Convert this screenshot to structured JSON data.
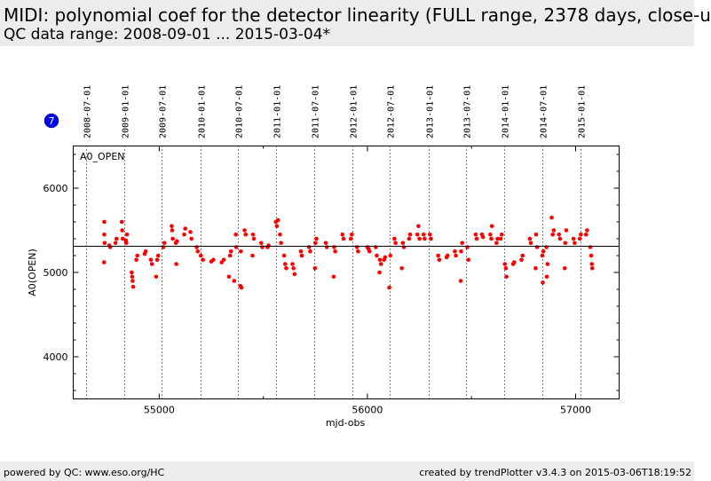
{
  "header": {
    "title": "MIDI: polynomial coef for the detector linearity (FULL range, 2378 days, close-u",
    "subtitle": "QC data range: 2008-09-01 ... 2015-03-04*"
  },
  "badge": {
    "label": "7",
    "color": "#0000ff"
  },
  "footer": {
    "left": "powered by QC: www.eso.org/HC",
    "right": "created by trendPlotter v3.4.3 on 2015-03-06T18:19:52"
  },
  "chart_data": {
    "type": "scatter",
    "panel_label": "A0_OPEN",
    "xlabel": "mjd-obs",
    "ylabel": "A0(OPEN)",
    "xlim": [
      54587,
      57209
    ],
    "ylim": [
      3500,
      6500
    ],
    "xticks": [
      55000,
      56000,
      57000
    ],
    "yticks": [
      4000,
      5000,
      6000
    ],
    "xtick_labels": [
      "55000",
      "56000",
      "57000"
    ],
    "ytick_labels": [
      "4000",
      "5000",
      "6000"
    ],
    "mean_line": 5316,
    "point_color": "#ff0000",
    "date_lines": [
      {
        "label": "2008-07-01",
        "x": 54648
      },
      {
        "label": "2009-01-01",
        "x": 54832
      },
      {
        "label": "2009-07-01",
        "x": 55013
      },
      {
        "label": "2010-01-01",
        "x": 55197
      },
      {
        "label": "2010-07-01",
        "x": 55378
      },
      {
        "label": "2011-01-01",
        "x": 55562
      },
      {
        "label": "2011-07-01",
        "x": 55743
      },
      {
        "label": "2012-01-01",
        "x": 55927
      },
      {
        "label": "2012-07-01",
        "x": 56109
      },
      {
        "label": "2013-01-01",
        "x": 56293
      },
      {
        "label": "2013-07-01",
        "x": 56474
      },
      {
        "label": "2014-01-01",
        "x": 56658
      },
      {
        "label": "2014-07-01",
        "x": 56839
      },
      {
        "label": "2015-01-01",
        "x": 57023
      }
    ],
    "points": [
      [
        54736,
        5600
      ],
      [
        54736,
        5450
      ],
      [
        54738,
        5350
      ],
      [
        54735,
        5120
      ],
      [
        54760,
        5320
      ],
      [
        54765,
        5300
      ],
      [
        54790,
        5350
      ],
      [
        54795,
        5400
      ],
      [
        54820,
        5600
      ],
      [
        54822,
        5500
      ],
      [
        54825,
        5400
      ],
      [
        54840,
        5380
      ],
      [
        54842,
        5350
      ],
      [
        54845,
        5450
      ],
      [
        54870,
        4950
      ],
      [
        54872,
        4900
      ],
      [
        54875,
        4830
      ],
      [
        54868,
        5000
      ],
      [
        54890,
        5150
      ],
      [
        54895,
        5200
      ],
      [
        54930,
        5220
      ],
      [
        54935,
        5250
      ],
      [
        54960,
        5150
      ],
      [
        54965,
        5100
      ],
      [
        54990,
        5150
      ],
      [
        54995,
        5200
      ],
      [
        54985,
        4950
      ],
      [
        55020,
        5300
      ],
      [
        55025,
        5350
      ],
      [
        55060,
        5550
      ],
      [
        55062,
        5500
      ],
      [
        55065,
        5400
      ],
      [
        55080,
        5350
      ],
      [
        55085,
        5370
      ],
      [
        55082,
        5100
      ],
      [
        55120,
        5450
      ],
      [
        55125,
        5520
      ],
      [
        55150,
        5480
      ],
      [
        55155,
        5400
      ],
      [
        55180,
        5300
      ],
      [
        55185,
        5250
      ],
      [
        55200,
        5200
      ],
      [
        55210,
        5150
      ],
      [
        55250,
        5130
      ],
      [
        55260,
        5150
      ],
      [
        55300,
        5120
      ],
      [
        55310,
        5150
      ],
      [
        55340,
        5200
      ],
      [
        55345,
        5250
      ],
      [
        55335,
        4950
      ],
      [
        55370,
        5300
      ],
      [
        55368,
        5450
      ],
      [
        55360,
        4900
      ],
      [
        55390,
        4840
      ],
      [
        55395,
        4820
      ],
      [
        55392,
        5250
      ],
      [
        55410,
        5500
      ],
      [
        55415,
        5450
      ],
      [
        55450,
        5450
      ],
      [
        55455,
        5400
      ],
      [
        55448,
        5200
      ],
      [
        55490,
        5350
      ],
      [
        55495,
        5300
      ],
      [
        55520,
        5300
      ],
      [
        55525,
        5320
      ],
      [
        55560,
        5600
      ],
      [
        55565,
        5550
      ],
      [
        55570,
        5620
      ],
      [
        55580,
        5450
      ],
      [
        55585,
        5350
      ],
      [
        55600,
        5200
      ],
      [
        55605,
        5100
      ],
      [
        55610,
        5050
      ],
      [
        55640,
        5100
      ],
      [
        55645,
        5050
      ],
      [
        55650,
        4980
      ],
      [
        55680,
        5250
      ],
      [
        55685,
        5200
      ],
      [
        55720,
        5300
      ],
      [
        55725,
        5250
      ],
      [
        55750,
        5350
      ],
      [
        55755,
        5400
      ],
      [
        55748,
        5050
      ],
      [
        55800,
        5350
      ],
      [
        55805,
        5300
      ],
      [
        55840,
        5300
      ],
      [
        55845,
        5250
      ],
      [
        55838,
        4950
      ],
      [
        55880,
        5450
      ],
      [
        55885,
        5400
      ],
      [
        55920,
        5400
      ],
      [
        55925,
        5450
      ],
      [
        55950,
        5300
      ],
      [
        55955,
        5250
      ],
      [
        56000,
        5300
      ],
      [
        56005,
        5280
      ],
      [
        56010,
        5250
      ],
      [
        56040,
        5300
      ],
      [
        56045,
        5200
      ],
      [
        56060,
        5150
      ],
      [
        56065,
        5100
      ],
      [
        56058,
        5000
      ],
      [
        56080,
        5150
      ],
      [
        56085,
        5180
      ],
      [
        56110,
        5200
      ],
      [
        56105,
        4820
      ],
      [
        56130,
        5400
      ],
      [
        56135,
        5350
      ],
      [
        56170,
        5350
      ],
      [
        56175,
        5300
      ],
      [
        56165,
        5050
      ],
      [
        56200,
        5400
      ],
      [
        56205,
        5450
      ],
      [
        56240,
        5450
      ],
      [
        56245,
        5550
      ],
      [
        56250,
        5400
      ],
      [
        56270,
        5450
      ],
      [
        56275,
        5400
      ],
      [
        56300,
        5450
      ],
      [
        56305,
        5400
      ],
      [
        56340,
        5200
      ],
      [
        56345,
        5150
      ],
      [
        56380,
        5180
      ],
      [
        56385,
        5200
      ],
      [
        56420,
        5250
      ],
      [
        56425,
        5200
      ],
      [
        56450,
        5250
      ],
      [
        56448,
        4900
      ],
      [
        56455,
        5350
      ],
      [
        56480,
        5300
      ],
      [
        56485,
        5150
      ],
      [
        56520,
        5450
      ],
      [
        56525,
        5400
      ],
      [
        56550,
        5450
      ],
      [
        56555,
        5420
      ],
      [
        56590,
        5450
      ],
      [
        56595,
        5400
      ],
      [
        56598,
        5550
      ],
      [
        56620,
        5350
      ],
      [
        56625,
        5400
      ],
      [
        56640,
        5400
      ],
      [
        56645,
        5450
      ],
      [
        56660,
        5100
      ],
      [
        56665,
        5050
      ],
      [
        56668,
        4950
      ],
      [
        56700,
        5100
      ],
      [
        56705,
        5120
      ],
      [
        56740,
        5150
      ],
      [
        56745,
        5200
      ],
      [
        56780,
        5400
      ],
      [
        56785,
        5350
      ],
      [
        56810,
        5450
      ],
      [
        56815,
        5300
      ],
      [
        56808,
        5050
      ],
      [
        56840,
        5200
      ],
      [
        56845,
        5250
      ],
      [
        56842,
        4880
      ],
      [
        56860,
        5300
      ],
      [
        56865,
        5100
      ],
      [
        56862,
        4950
      ],
      [
        56890,
        5450
      ],
      [
        56895,
        5500
      ],
      [
        56885,
        5650
      ],
      [
        56920,
        5450
      ],
      [
        56925,
        5400
      ],
      [
        56950,
        5350
      ],
      [
        56955,
        5500
      ],
      [
        56948,
        5050
      ],
      [
        56990,
        5400
      ],
      [
        56995,
        5350
      ],
      [
        57020,
        5400
      ],
      [
        57025,
        5450
      ],
      [
        57050,
        5450
      ],
      [
        57055,
        5500
      ],
      [
        57070,
        5300
      ],
      [
        57075,
        5200
      ],
      [
        57078,
        5100
      ],
      [
        57080,
        5050
      ]
    ]
  }
}
